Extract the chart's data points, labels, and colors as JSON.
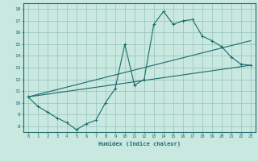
{
  "xlabel": "Humidex (Indice chaleur)",
  "ylabel": "",
  "xlim": [
    -0.5,
    23.5
  ],
  "ylim": [
    7.5,
    18.5
  ],
  "xticks": [
    0,
    1,
    2,
    3,
    4,
    5,
    6,
    7,
    8,
    9,
    10,
    11,
    12,
    13,
    14,
    15,
    16,
    17,
    18,
    19,
    20,
    21,
    22,
    23
  ],
  "yticks": [
    8,
    9,
    10,
    11,
    12,
    13,
    14,
    15,
    16,
    17,
    18
  ],
  "bg_color": "#c8e8e0",
  "grid_color": "#9ec8c0",
  "line_color": "#1a6b6b",
  "line1_x": [
    0,
    1,
    2,
    3,
    4,
    5,
    6,
    7,
    8,
    9,
    10,
    11,
    12,
    13,
    14,
    15,
    16,
    17,
    18,
    19,
    20,
    21,
    22,
    23
  ],
  "line1_y": [
    10.5,
    9.7,
    9.2,
    8.7,
    8.3,
    7.7,
    8.2,
    8.5,
    10.0,
    11.2,
    15.0,
    11.5,
    12.0,
    16.7,
    17.8,
    16.7,
    17.0,
    17.1,
    15.7,
    15.3,
    14.8,
    13.9,
    13.3,
    13.2
  ],
  "line2_x": [
    0,
    23
  ],
  "line2_y": [
    10.5,
    13.2
  ],
  "line3_x": [
    0,
    23
  ],
  "line3_y": [
    10.5,
    15.3
  ]
}
